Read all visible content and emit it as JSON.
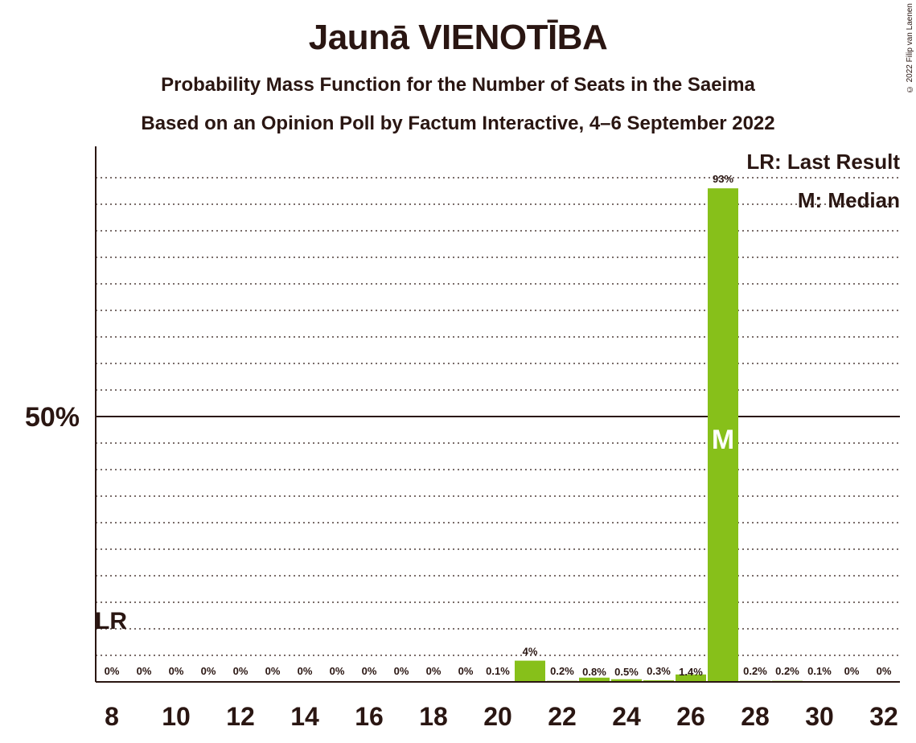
{
  "chart_data": {
    "type": "bar",
    "title": "Jaunā VIENOTĪBA",
    "subtitle": "Probability Mass Function for the Number of Seats in the Saeima",
    "subtitle2": "Based on an Opinion Poll by Factum Interactive, 4–6 September 2022",
    "copyright": "© 2022 Filip van Laenen",
    "xlabel": "",
    "ylabel": "",
    "ylim": [
      0,
      100
    ],
    "y_tick_label": "50%",
    "y_tick_value": 50,
    "x": [
      8,
      9,
      10,
      11,
      12,
      13,
      14,
      15,
      16,
      17,
      18,
      19,
      20,
      21,
      22,
      23,
      24,
      25,
      26,
      27,
      28,
      29,
      30,
      31,
      32
    ],
    "x_tick_labels": [
      "8",
      "10",
      "12",
      "14",
      "16",
      "18",
      "20",
      "22",
      "24",
      "26",
      "28",
      "30",
      "32"
    ],
    "values": [
      0,
      0,
      0,
      0,
      0,
      0,
      0,
      0,
      0,
      0,
      0,
      0,
      0.1,
      4,
      0.2,
      0.8,
      0.5,
      0.3,
      1.4,
      93,
      0.2,
      0.2,
      0.1,
      0,
      0
    ],
    "value_labels": [
      "0%",
      "0%",
      "0%",
      "0%",
      "0%",
      "0%",
      "0%",
      "0%",
      "0%",
      "0%",
      "0%",
      "0%",
      "0.1%",
      "4%",
      "0.2%",
      "0.8%",
      "0.5%",
      "0.3%",
      "1.4%",
      "93%",
      "0.2%",
      "0.2%",
      "0.1%",
      "0%",
      "0%"
    ],
    "bar_color": "#87c01a",
    "last_result_seat": 8,
    "last_result_marker": "LR",
    "median_seat": 27,
    "median_marker": "M",
    "legend": {
      "last_result": "LR: Last Result",
      "median": "M: Median"
    }
  }
}
